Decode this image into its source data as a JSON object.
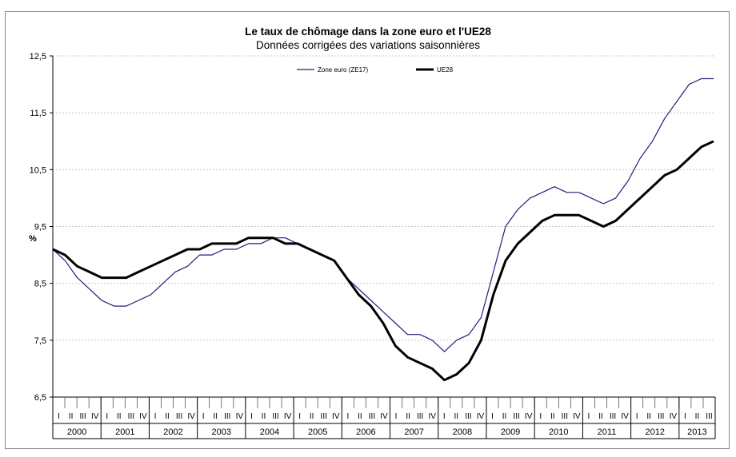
{
  "chart_data": {
    "type": "line",
    "title": "Le taux de chômage dans la zone euro et l'UE28",
    "subtitle": "Données corrigées des variations saisonnières",
    "ylabel": "%",
    "ylim": [
      6.5,
      12.5
    ],
    "yticks": [
      "6,5",
      "7,5",
      "8,5",
      "9,5",
      "10,5",
      "11,5",
      "12,5"
    ],
    "grid": true,
    "legend_position": "top-center",
    "years": [
      "2000",
      "2001",
      "2002",
      "2003",
      "2004",
      "2005",
      "2006",
      "2007",
      "2008",
      "2009",
      "2010",
      "2011",
      "2012",
      "2013"
    ],
    "quarter_labels": [
      "I",
      "II",
      "III",
      "IV"
    ],
    "last_year_quarters": 3,
    "series": [
      {
        "name": "Zone euro (ZE17)",
        "color": "#1f1f7a",
        "values": [
          9.1,
          8.9,
          8.6,
          8.4,
          8.2,
          8.1,
          8.1,
          8.2,
          8.3,
          8.5,
          8.7,
          8.8,
          9.0,
          9.0,
          9.1,
          9.1,
          9.2,
          9.2,
          9.3,
          9.3,
          9.2,
          9.1,
          9.0,
          8.9,
          8.6,
          8.4,
          8.2,
          8.0,
          7.8,
          7.6,
          7.6,
          7.5,
          7.3,
          7.5,
          7.6,
          7.9,
          8.7,
          9.5,
          9.8,
          10.0,
          10.1,
          10.2,
          10.1,
          10.1,
          10.0,
          9.9,
          10.0,
          10.3,
          10.7,
          11.0,
          11.4,
          11.7,
          12.0,
          12.1,
          12.1
        ]
      },
      {
        "name": "UE28",
        "color": "#000000",
        "values": [
          9.1,
          9.0,
          8.8,
          8.7,
          8.6,
          8.6,
          8.6,
          8.7,
          8.8,
          8.9,
          9.0,
          9.1,
          9.1,
          9.2,
          9.2,
          9.2,
          9.3,
          9.3,
          9.3,
          9.2,
          9.2,
          9.1,
          9.0,
          8.9,
          8.6,
          8.3,
          8.1,
          7.8,
          7.4,
          7.2,
          7.1,
          7.0,
          6.8,
          6.9,
          7.1,
          7.5,
          8.3,
          8.9,
          9.2,
          9.4,
          9.6,
          9.7,
          9.7,
          9.7,
          9.6,
          9.5,
          9.6,
          9.8,
          10.0,
          10.2,
          10.4,
          10.5,
          10.7,
          10.9,
          11.0
        ]
      }
    ]
  }
}
